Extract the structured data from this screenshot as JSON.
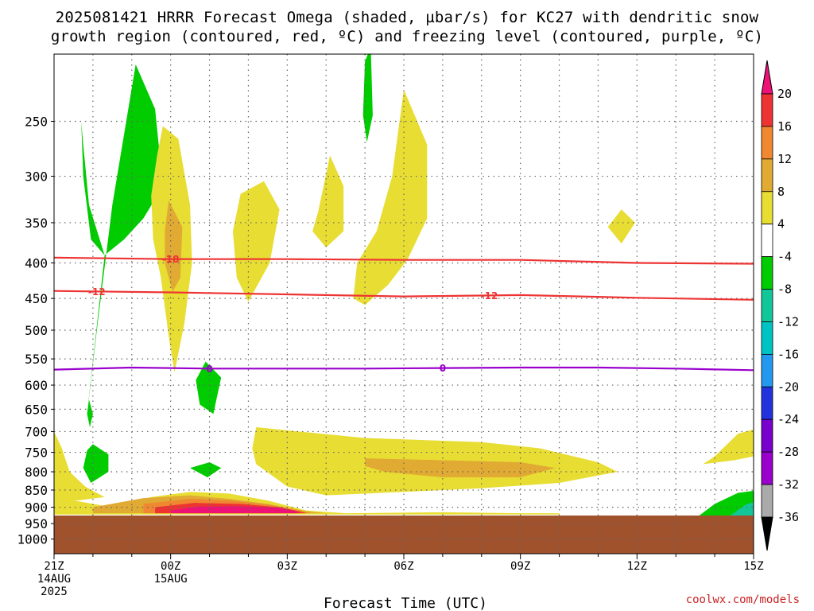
{
  "chart_data": {
    "type": "heatmap",
    "title": "2025081421 HRRR Forecast Omega (shaded, µbar/s) for KC27 with dendritic snow growth region (contoured, red, ºC) and freezing level (contoured, purple, ºC)",
    "title_line1": "2025081421 HRRR Forecast Omega (shaded, µbar/s) for KC27 with dendritic snow",
    "title_line2": "growth region (contoured, red, ºC) and freezing level (contoured, purple, ºC)",
    "xlabel": "Forecast Time (UTC)",
    "ylabel": "",
    "y_axis": {
      "scale": "log-pressure",
      "inverted": true,
      "ylim": [
        1050,
        200
      ],
      "ticks": [
        250,
        300,
        350,
        400,
        450,
        500,
        550,
        600,
        650,
        700,
        750,
        800,
        850,
        900,
        950,
        1000
      ]
    },
    "x_axis": {
      "unit": "hours from 21Z 14AUG 2025",
      "xlim": [
        0,
        18
      ],
      "ticks": [
        {
          "h": 0,
          "lines": [
            "21Z",
            "14AUG",
            "2025"
          ]
        },
        {
          "h": 3,
          "lines": [
            "00Z",
            "15AUG"
          ]
        },
        {
          "h": 6,
          "lines": [
            "03Z"
          ]
        },
        {
          "h": 9,
          "lines": [
            "06Z"
          ]
        },
        {
          "h": 12,
          "lines": [
            "09Z"
          ]
        },
        {
          "h": 15,
          "lines": [
            "12Z"
          ]
        },
        {
          "h": 18,
          "lines": [
            "15Z"
          ]
        }
      ]
    },
    "grid": true,
    "ground_level_hpa": 925,
    "contours": [
      {
        "name": "-18",
        "color": "#ee3333",
        "label_at_h": [
          3.0
        ],
        "points": [
          [
            0,
            393
          ],
          [
            3,
            395
          ],
          [
            6,
            395
          ],
          [
            9,
            396
          ],
          [
            12,
            396
          ],
          [
            15,
            400
          ],
          [
            18,
            401
          ]
        ]
      },
      {
        "name": "-12",
        "color": "#ee3333",
        "label_at_h": [
          1.1,
          11.2
        ],
        "points": [
          [
            0,
            439
          ],
          [
            3,
            441
          ],
          [
            6,
            444
          ],
          [
            9,
            447
          ],
          [
            12,
            445
          ],
          [
            15,
            449
          ],
          [
            18,
            452
          ]
        ]
      },
      {
        "name": "0",
        "color": "#9900cc",
        "label_at_h": [
          4.0,
          10.0
        ],
        "points": [
          [
            0,
            570
          ],
          [
            2,
            566
          ],
          [
            4,
            568
          ],
          [
            6,
            568
          ],
          [
            8,
            568
          ],
          [
            10,
            567
          ],
          [
            12,
            566
          ],
          [
            14,
            566
          ],
          [
            16,
            568
          ],
          [
            18,
            571
          ]
        ]
      }
    ],
    "shaded_regions": [
      {
        "level": "-8",
        "color": "#00cc00",
        "points": [
          [
            0.8,
            700
          ],
          [
            1.1,
            500
          ],
          [
            1.5,
            330
          ],
          [
            2.1,
            207
          ],
          [
            2.6,
            240
          ],
          [
            2.8,
            310
          ],
          [
            2.3,
            345
          ],
          [
            1.8,
            370
          ],
          [
            1.3,
            390
          ],
          [
            0.95,
            370
          ],
          [
            0.75,
            300
          ],
          [
            0.7,
            250
          ],
          [
            0.75,
            270
          ],
          [
            0.9,
            330
          ],
          [
            1.3,
            390
          ]
        ]
      },
      {
        "level": "-8",
        "color": "#00cc00",
        "points": [
          [
            8.0,
            205
          ],
          [
            8.15,
            195
          ],
          [
            8.2,
            245
          ],
          [
            8.05,
            268
          ],
          [
            7.95,
            245
          ]
        ]
      },
      {
        "level": "4",
        "color": "#e8dd33",
        "points": [
          [
            2.8,
            254
          ],
          [
            3.2,
            265
          ],
          [
            3.5,
            330
          ],
          [
            3.55,
            400
          ],
          [
            3.35,
            490
          ],
          [
            3.1,
            575
          ],
          [
            2.95,
            510
          ],
          [
            2.75,
            420
          ],
          [
            2.55,
            370
          ],
          [
            2.5,
            320
          ],
          [
            2.65,
            280
          ]
        ]
      },
      {
        "level": "8",
        "color": "#e0aa33",
        "points": [
          [
            2.95,
            325
          ],
          [
            3.3,
            355
          ],
          [
            3.25,
            420
          ],
          [
            3.05,
            440
          ],
          [
            2.85,
            400
          ],
          [
            2.85,
            360
          ]
        ]
      },
      {
        "level": "4",
        "color": "#e8dd33",
        "points": [
          [
            4.8,
            318
          ],
          [
            5.4,
            305
          ],
          [
            5.8,
            335
          ],
          [
            5.55,
            400
          ],
          [
            5.0,
            455
          ],
          [
            4.7,
            420
          ],
          [
            4.6,
            360
          ]
        ]
      },
      {
        "level": "4",
        "color": "#e8dd33",
        "points": [
          [
            6.8,
            337
          ],
          [
            7.1,
            280
          ],
          [
            7.45,
            310
          ],
          [
            7.45,
            360
          ],
          [
            7.0,
            380
          ],
          [
            6.65,
            360
          ]
        ]
      },
      {
        "level": "4",
        "color": "#e8dd33",
        "points": [
          [
            9.0,
            225
          ],
          [
            9.6,
            270
          ],
          [
            9.6,
            345
          ],
          [
            9.1,
            395
          ],
          [
            8.6,
            430
          ],
          [
            8.0,
            460
          ],
          [
            7.7,
            450
          ],
          [
            7.8,
            400
          ],
          [
            8.3,
            360
          ],
          [
            8.7,
            300
          ]
        ]
      },
      {
        "level": "4",
        "color": "#e8dd33",
        "points": [
          [
            14.6,
            335
          ],
          [
            14.95,
            350
          ],
          [
            14.6,
            375
          ],
          [
            14.25,
            355
          ]
        ]
      },
      {
        "level": "-8",
        "color": "#00cc00",
        "points": [
          [
            3.9,
            555
          ],
          [
            4.3,
            585
          ],
          [
            4.1,
            660
          ],
          [
            3.75,
            640
          ],
          [
            3.65,
            590
          ]
        ]
      },
      {
        "level": "4",
        "color": "#e8dd33",
        "points": [
          [
            5.2,
            690
          ],
          [
            6.3,
            700
          ],
          [
            8.0,
            715
          ],
          [
            9.5,
            720
          ],
          [
            11.0,
            725
          ],
          [
            12.5,
            740
          ],
          [
            14.0,
            775
          ],
          [
            14.5,
            800
          ],
          [
            13.0,
            830
          ],
          [
            11.0,
            845
          ],
          [
            9.0,
            855
          ],
          [
            7.0,
            865
          ],
          [
            6.0,
            840
          ],
          [
            5.2,
            780
          ],
          [
            5.1,
            740
          ]
        ]
      },
      {
        "level": "8",
        "color": "#e0aa33",
        "points": [
          [
            8.0,
            765
          ],
          [
            10.0,
            770
          ],
          [
            12.0,
            775
          ],
          [
            12.9,
            790
          ],
          [
            12.0,
            815
          ],
          [
            10.0,
            815
          ],
          [
            8.5,
            800
          ],
          [
            8.0,
            785
          ]
        ]
      },
      {
        "level": "4",
        "color": "#e8dd33",
        "points": [
          [
            0.0,
            870
          ],
          [
            1.5,
            900
          ],
          [
            2.5,
            870
          ],
          [
            3.5,
            855
          ],
          [
            4.5,
            860
          ],
          [
            5.5,
            880
          ],
          [
            6.5,
            910
          ],
          [
            7.5,
            918
          ],
          [
            10.0,
            915
          ],
          [
            12.0,
            918
          ],
          [
            13.0,
            918
          ],
          [
            13.0,
            922
          ],
          [
            0.0,
            922
          ]
        ]
      },
      {
        "level": "8",
        "color": "#e0aa33",
        "points": [
          [
            1.0,
            900
          ],
          [
            2.3,
            873
          ],
          [
            3.5,
            865
          ],
          [
            4.5,
            875
          ],
          [
            5.5,
            890
          ],
          [
            6.5,
            912
          ],
          [
            7.0,
            918
          ],
          [
            1.0,
            918
          ]
        ]
      },
      {
        "level": "12",
        "color": "#ef8830",
        "points": [
          [
            2.3,
            890
          ],
          [
            3.5,
            875
          ],
          [
            4.5,
            880
          ],
          [
            5.5,
            892
          ],
          [
            6.2,
            908
          ],
          [
            6.6,
            918
          ],
          [
            2.3,
            918
          ]
        ]
      },
      {
        "level": "16",
        "color": "#ee3333",
        "points": [
          [
            2.6,
            900
          ],
          [
            3.6,
            887
          ],
          [
            4.8,
            890
          ],
          [
            5.8,
            900
          ],
          [
            6.3,
            912
          ],
          [
            6.5,
            918
          ],
          [
            2.6,
            918
          ]
        ]
      },
      {
        "level": "20",
        "color": "#ee1177",
        "points": [
          [
            3.0,
            910
          ],
          [
            3.7,
            898
          ],
          [
            4.8,
            897
          ],
          [
            5.8,
            902
          ],
          [
            6.2,
            912
          ],
          [
            6.3,
            918
          ],
          [
            3.0,
            918
          ]
        ]
      },
      {
        "level": "-8",
        "color": "#00cc00",
        "points": [
          [
            16.6,
            925
          ],
          [
            17.0,
            890
          ],
          [
            17.6,
            858
          ],
          [
            18.0,
            852
          ],
          [
            18.0,
            925
          ]
        ]
      },
      {
        "level": "-12",
        "color": "#11c699",
        "points": [
          [
            17.4,
            925
          ],
          [
            17.8,
            892
          ],
          [
            18.0,
            885
          ],
          [
            18.0,
            925
          ]
        ]
      },
      {
        "level": "4",
        "color": "#e8dd33",
        "points": [
          [
            17.0,
            760
          ],
          [
            17.6,
            705
          ],
          [
            18.0,
            695
          ],
          [
            18.0,
            760
          ],
          [
            17.5,
            770
          ],
          [
            16.7,
            780
          ]
        ]
      },
      {
        "level": "4",
        "color": "#e8dd33",
        "points": [
          [
            0.0,
            700
          ],
          [
            0.2,
            740
          ],
          [
            0.4,
            800
          ],
          [
            0.8,
            840
          ],
          [
            1.3,
            870
          ],
          [
            0.6,
            880
          ],
          [
            0.0,
            880
          ]
        ]
      },
      {
        "level": "-8",
        "color": "#00cc00",
        "points": [
          [
            1.0,
            730
          ],
          [
            1.4,
            755
          ],
          [
            1.4,
            800
          ],
          [
            0.95,
            830
          ],
          [
            0.75,
            790
          ],
          [
            0.85,
            745
          ]
        ]
      },
      {
        "level": "-8",
        "color": "#00cc00",
        "points": [
          [
            0.9,
            630
          ],
          [
            1.0,
            660
          ],
          [
            0.92,
            690
          ],
          [
            0.85,
            660
          ]
        ]
      },
      {
        "level": "-8",
        "color": "#00cc00",
        "points": [
          [
            3.5,
            790
          ],
          [
            4.0,
            775
          ],
          [
            4.3,
            790
          ],
          [
            3.95,
            815
          ]
        ]
      }
    ],
    "colorbar": {
      "labels": [
        "20",
        "16",
        "12",
        "8",
        "4",
        "-4",
        "-8",
        "-12",
        "-16",
        "-20",
        "-24",
        "-28",
        "-32",
        "-36"
      ],
      "colors": [
        "#ee1177",
        "#ee3333",
        "#ef8830",
        "#e0aa33",
        "#e8dd33",
        "#ffffff",
        "#00cc00",
        "#11c699",
        "#00c4c4",
        "#2299ee",
        "#2233dd",
        "#7700cc",
        "#9900cc",
        "#aaaaaa",
        "#000000"
      ]
    },
    "ground_color": "#a0522d"
  },
  "credit": "coolwx.com/models"
}
